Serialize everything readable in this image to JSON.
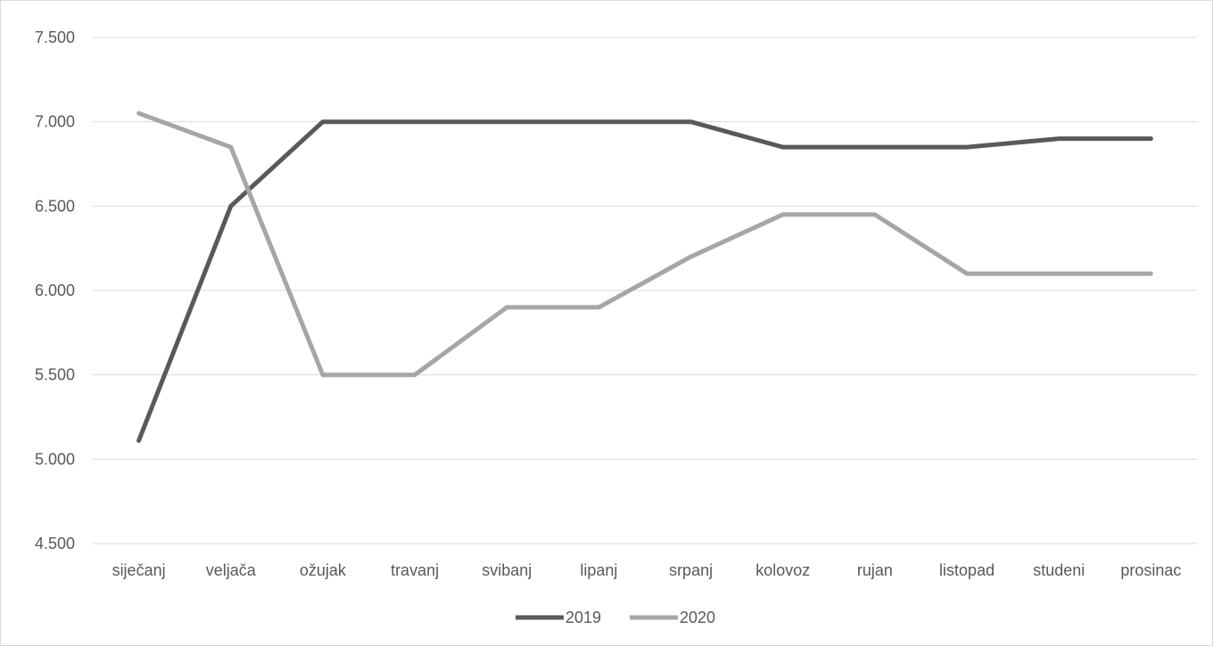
{
  "chart_data": {
    "type": "line",
    "categories": [
      "siječanj",
      "veljača",
      "ožujak",
      "travanj",
      "svibanj",
      "lipanj",
      "srpanj",
      "kolovoz",
      "rujan",
      "listopad",
      "studeni",
      "prosinac"
    ],
    "series": [
      {
        "name": "2019",
        "values": [
          5110,
          6500,
          7000,
          7000,
          7000,
          7000,
          7000,
          6850,
          6850,
          6850,
          6900,
          6900
        ],
        "color": "#595959"
      },
      {
        "name": "2020",
        "values": [
          7050,
          6850,
          5500,
          5500,
          5900,
          5900,
          6200,
          6450,
          6450,
          6100,
          6100,
          6100
        ],
        "color": "#a6a6a6"
      }
    ],
    "ylim": [
      4500,
      7500
    ],
    "yticks": [
      4500,
      5000,
      5500,
      6000,
      6500,
      7000,
      7500
    ],
    "ytick_labels": [
      "4.500",
      "5.000",
      "5.500",
      "6.000",
      "6.500",
      "7.000",
      "7.500"
    ],
    "grid": true,
    "legend_position": "bottom",
    "title": "",
    "xlabel": "",
    "ylabel": ""
  }
}
